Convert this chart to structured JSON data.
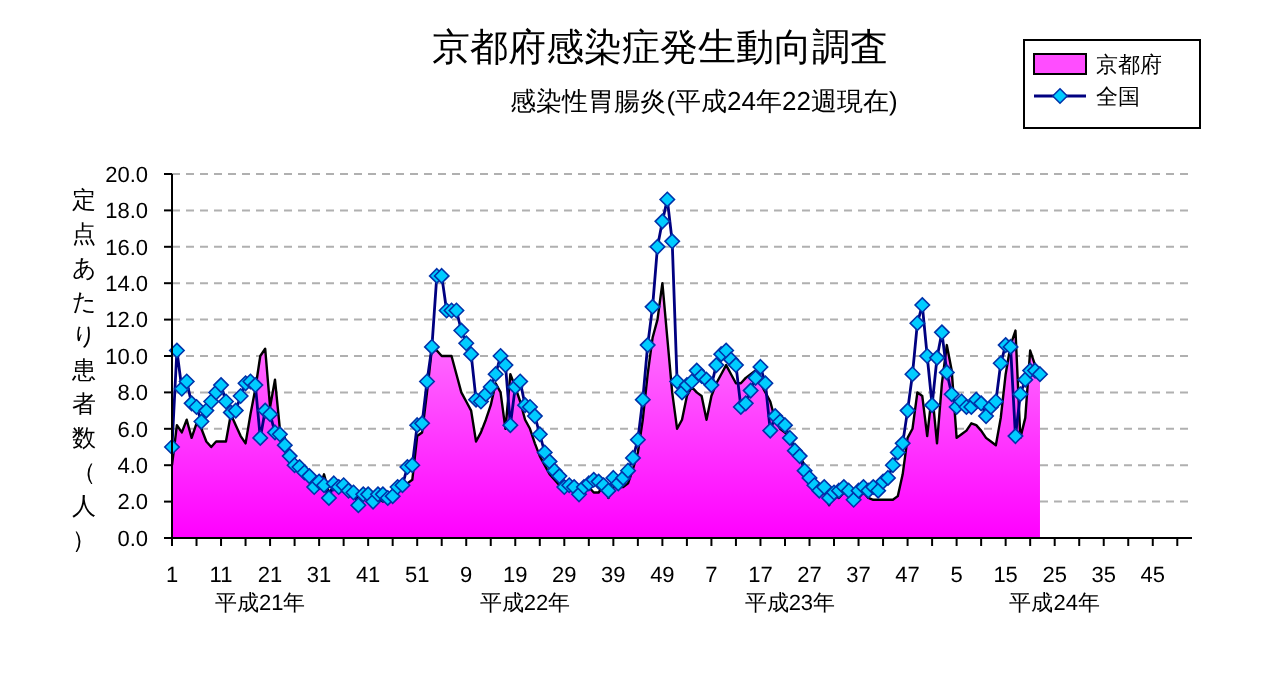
{
  "chart_data": {
    "type": "area",
    "title": "京都府感染症発生動向調査",
    "subtitle": "感染性胃腸炎(平成24年22週現在)",
    "ylabel": "定点あたり患者数（人）",
    "categories": [
      "1",
      null,
      null,
      null,
      null,
      null,
      null,
      null,
      null,
      null,
      "11",
      null,
      null,
      null,
      null,
      null,
      null,
      null,
      null,
      null,
      "21",
      null,
      null,
      null,
      null,
      null,
      null,
      null,
      null,
      null,
      "31",
      null,
      null,
      null,
      null,
      null,
      null,
      null,
      null,
      null,
      "41",
      null,
      null,
      null,
      null,
      null,
      null,
      null,
      null,
      null,
      "51",
      null,
      null,
      null,
      null,
      null,
      null,
      null,
      null,
      null,
      "9",
      null,
      null,
      null,
      null,
      null,
      null,
      null,
      null,
      null,
      "19",
      null,
      null,
      null,
      null,
      null,
      null,
      null,
      null,
      null,
      "29",
      null,
      null,
      null,
      null,
      null,
      null,
      null,
      null,
      null,
      "39",
      null,
      null,
      null,
      null,
      null,
      null,
      null,
      null,
      null,
      "49",
      null,
      null,
      null,
      null,
      null,
      null,
      null,
      null,
      null,
      "7",
      null,
      null,
      null,
      null,
      null,
      null,
      null,
      null,
      null,
      "17",
      null,
      null,
      null,
      null,
      null,
      null,
      null,
      null,
      null,
      "27",
      null,
      null,
      null,
      null,
      null,
      null,
      null,
      null,
      null,
      "37",
      null,
      null,
      null,
      null,
      null,
      null,
      null,
      null,
      null,
      "47",
      null,
      null,
      null,
      null,
      null,
      null,
      null,
      null,
      null,
      "5",
      null,
      null,
      null,
      null,
      null,
      null,
      null,
      null,
      null,
      "15",
      null,
      null,
      null,
      null,
      null,
      null,
      null,
      null,
      null,
      "25",
      null,
      null,
      null,
      null,
      null,
      null,
      null,
      null,
      null,
      "35",
      null,
      null,
      null,
      null,
      null,
      null,
      null,
      null,
      null,
      "45",
      null,
      null,
      null,
      null,
      null,
      null,
      null
    ],
    "ylim": [
      0,
      20
    ],
    "yticks": [
      {
        "value": 0,
        "label": "0.0"
      },
      {
        "value": 2,
        "label": "2.0"
      },
      {
        "value": 4,
        "label": "4.0"
      },
      {
        "value": 6,
        "label": "6.0"
      },
      {
        "value": 8,
        "label": "8.0"
      },
      {
        "value": 10,
        "label": "10.0"
      },
      {
        "value": 12,
        "label": "12.0"
      },
      {
        "value": 14,
        "label": "14.0"
      },
      {
        "value": 16,
        "label": "16.0"
      },
      {
        "value": 18,
        "label": "18.0"
      },
      {
        "value": 20,
        "label": "20.0"
      }
    ],
    "grid": "y",
    "legend": "top right",
    "annotations": [
      "平成21年",
      "平成22年",
      "平成23年",
      "平成24年"
    ],
    "series": [
      {
        "name": "京都府",
        "color": "#ff00ff",
        "values": [
          4.0,
          6.2,
          5.8,
          6.5,
          5.5,
          6.3,
          6.0,
          5.3,
          5.0,
          5.3,
          5.3,
          5.3,
          6.8,
          6.2,
          5.6,
          5.2,
          6.8,
          8.2,
          10.0,
          10.4,
          7.2,
          8.7,
          6.0,
          5.5,
          4.5,
          4.0,
          3.7,
          3.5,
          3.1,
          2.8,
          2.7,
          3.5,
          2.5,
          2.8,
          2.7,
          2.6,
          2.4,
          2.4,
          2.2,
          2.5,
          2.3,
          2.3,
          2.2,
          2.0,
          2.4,
          2.3,
          2.6,
          2.6,
          3.0,
          3.2,
          5.6,
          5.8,
          8.0,
          10.4,
          10.3,
          10.0,
          10.0,
          10.0,
          9.0,
          8.0,
          7.5,
          7.0,
          5.3,
          5.8,
          6.5,
          7.3,
          8.5,
          8.0,
          6.0,
          9.0,
          8.3,
          7.5,
          6.5,
          6.0,
          5.2,
          4.5,
          4.0,
          3.5,
          3.2,
          2.9,
          2.8,
          2.6,
          2.9,
          2.6,
          2.8,
          2.8,
          2.5,
          2.5,
          2.9,
          2.2,
          2.8,
          2.8,
          2.8,
          3.0,
          3.8,
          4.7,
          6.5,
          9.0,
          11.0,
          12.0,
          14.0,
          11.0,
          8.0,
          6.0,
          6.5,
          7.8,
          8.3,
          8.0,
          7.8,
          6.5,
          7.8,
          8.5,
          9.0,
          9.5,
          9.0,
          8.5,
          8.5,
          8.8,
          9.0,
          9.2,
          8.5,
          8.0,
          7.5,
          6.5,
          6.0,
          5.8,
          5.5,
          5.0,
          4.5,
          4.0,
          3.5,
          3.0,
          2.5,
          2.5,
          1.8,
          2.4,
          2.2,
          2.5,
          2.4,
          2.4,
          2.2,
          2.5,
          2.2,
          2.1,
          2.1,
          2.1,
          2.1,
          2.1,
          2.3,
          3.5,
          5.5,
          6.0,
          8.0,
          7.8,
          5.6,
          8.0,
          5.2,
          8.5,
          10.6,
          9.2,
          5.5,
          5.7,
          5.9,
          6.3,
          6.2,
          5.9,
          5.5,
          5.3,
          5.1,
          6.6,
          9.0,
          10.6,
          11.4,
          5.5,
          6.6,
          10.3,
          9.5,
          9.0,
          null,
          null,
          null,
          null,
          null,
          null,
          null,
          null,
          null,
          null,
          null,
          null,
          null,
          null,
          null,
          null,
          null,
          null,
          null,
          null,
          null,
          null,
          null,
          null,
          null,
          null,
          null,
          null,
          null,
          null
        ]
      },
      {
        "name": "全国",
        "type": "line",
        "color": "#00ccff",
        "marker": "diamond",
        "values": [
          5.0,
          10.3,
          8.2,
          8.6,
          7.4,
          7.2,
          6.4,
          7.0,
          7.5,
          8.0,
          8.4,
          7.5,
          6.9,
          7.0,
          7.8,
          8.5,
          8.6,
          8.4,
          5.5,
          7.0,
          6.8,
          5.8,
          5.7,
          5.1,
          4.5,
          4.0,
          3.9,
          3.6,
          3.4,
          2.8,
          3.1,
          2.9,
          2.2,
          3.0,
          2.8,
          2.9,
          2.6,
          2.5,
          1.8,
          2.4,
          2.4,
          2.0,
          2.4,
          2.4,
          2.2,
          2.3,
          2.8,
          2.9,
          3.9,
          4.0,
          6.2,
          6.3,
          8.6,
          10.5,
          14.4,
          14.4,
          12.5,
          12.5,
          12.5,
          11.4,
          10.7,
          10.1,
          7.6,
          7.5,
          7.9,
          8.3,
          9.0,
          10.0,
          9.5,
          6.2,
          8.3,
          8.6,
          7.3,
          7.2,
          6.7,
          5.7,
          4.7,
          4.2,
          3.7,
          3.4,
          2.8,
          2.9,
          2.8,
          2.4,
          2.8,
          3.0,
          3.2,
          3.1,
          2.9,
          2.6,
          3.3,
          3.0,
          3.3,
          3.7,
          4.4,
          5.4,
          7.6,
          10.6,
          12.7,
          16.0,
          17.4,
          18.6,
          16.3,
          8.6,
          8.0,
          8.4,
          8.6,
          9.2,
          8.9,
          8.7,
          8.4,
          9.5,
          10.1,
          10.3,
          9.8,
          9.5,
          7.2,
          7.4,
          8.1,
          8.8,
          9.4,
          8.5,
          5.9,
          6.7,
          6.4,
          6.2,
          5.5,
          4.8,
          4.5,
          3.7,
          3.3,
          2.9,
          2.6,
          2.8,
          2.2,
          2.5,
          2.6,
          2.8,
          2.6,
          2.1,
          2.6,
          2.8,
          2.6,
          2.8,
          2.6,
          3.1,
          3.3,
          4.0,
          4.7,
          5.2,
          7.0,
          9.0,
          11.8,
          12.8,
          10.0,
          7.3,
          9.9,
          11.3,
          9.1,
          7.9,
          7.2,
          7.5,
          7.2,
          7.2,
          7.6,
          7.4,
          6.7,
          7.2,
          7.5,
          9.6,
          10.6,
          10.5,
          5.6,
          7.9,
          8.7,
          9.2,
          9.2,
          9.0,
          null,
          null,
          null,
          null,
          null,
          null,
          null,
          null,
          null,
          null,
          null,
          null,
          null,
          null,
          null,
          null,
          null,
          null,
          null,
          null,
          null,
          null,
          null,
          null,
          null,
          null,
          null,
          null,
          null,
          null
        ]
      }
    ]
  }
}
